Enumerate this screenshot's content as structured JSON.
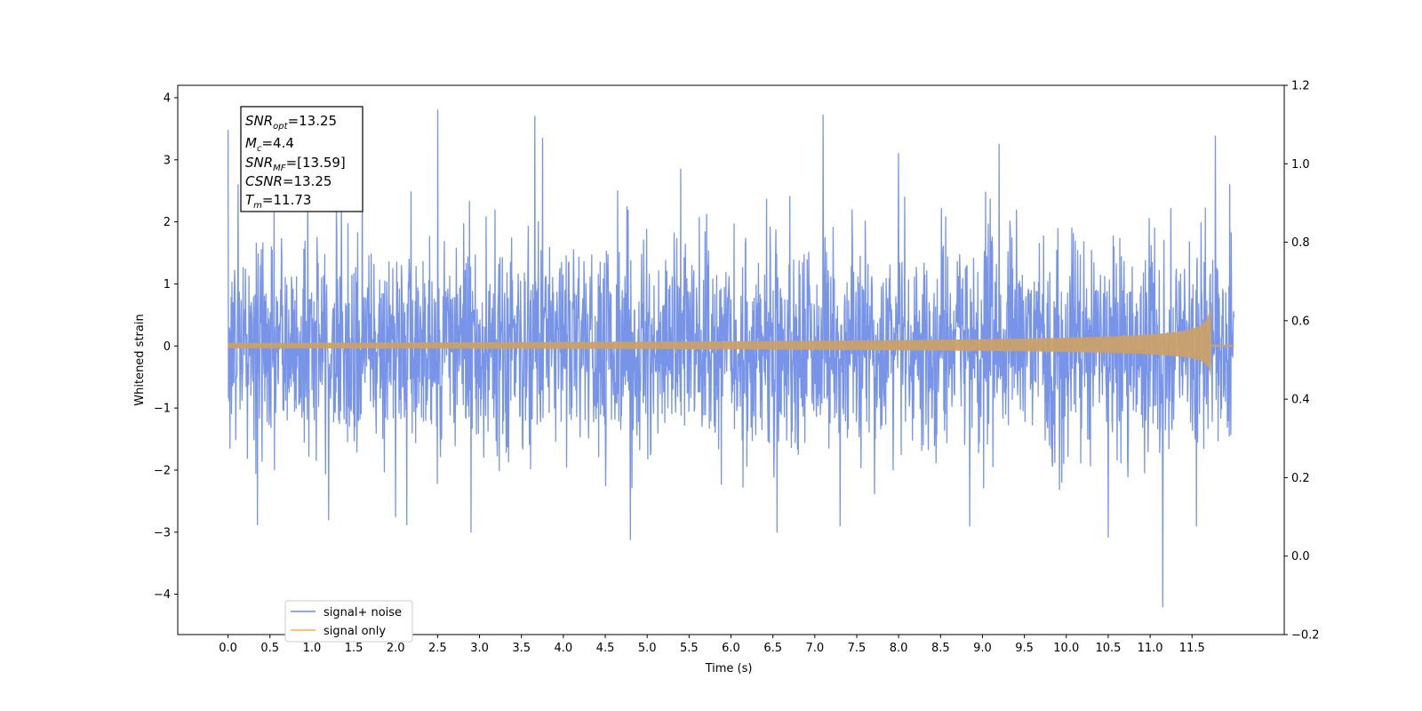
{
  "chart_data": {
    "type": "line",
    "title": "",
    "xlabel": "Time (s)",
    "ylabel": "Whitened strain",
    "xlim": [
      -0.6,
      12.6
    ],
    "ylim": [
      -4.65,
      4.2
    ],
    "ylim_right": [
      -0.2,
      1.2
    ],
    "x_ticks": [
      "0.0",
      "0.5",
      "1.0",
      "1.5",
      "2.0",
      "2.5",
      "3.0",
      "3.5",
      "4.0",
      "4.5",
      "5.0",
      "5.5",
      "6.0",
      "6.5",
      "7.0",
      "7.5",
      "8.0",
      "8.5",
      "9.0",
      "9.5",
      "10.0",
      "10.5",
      "11.0",
      "11.5"
    ],
    "y_ticks": [
      "4",
      "3",
      "2",
      "1",
      "0",
      "−1",
      "−2",
      "−3",
      "−4"
    ],
    "y_ticks_right": [
      "1.2",
      "1.0",
      "0.8",
      "0.6",
      "0.4",
      "0.2",
      "0.0",
      "−0.2"
    ],
    "grid": false,
    "legend_position": "lower-left",
    "series": [
      {
        "name": "signal+ noise",
        "color": "#6b8be6",
        "x_range": [
          0.0,
          12.0
        ],
        "noise_std": 0.85,
        "peaks": [
          {
            "x": 0.0,
            "y": 3.48
          },
          {
            "x": 0.12,
            "y": 2.6
          },
          {
            "x": 0.35,
            "y": -2.88
          },
          {
            "x": 0.95,
            "y": 3.05
          },
          {
            "x": 1.2,
            "y": -2.8
          },
          {
            "x": 1.6,
            "y": 3.1
          },
          {
            "x": 2.0,
            "y": -2.75
          },
          {
            "x": 2.13,
            "y": -2.88
          },
          {
            "x": 2.5,
            "y": 3.8
          },
          {
            "x": 2.9,
            "y": -3.0
          },
          {
            "x": 3.66,
            "y": 3.7
          },
          {
            "x": 3.75,
            "y": 3.35
          },
          {
            "x": 4.8,
            "y": -3.12
          },
          {
            "x": 5.4,
            "y": 2.85
          },
          {
            "x": 6.55,
            "y": -3.0
          },
          {
            "x": 7.1,
            "y": 3.72
          },
          {
            "x": 7.3,
            "y": -2.9
          },
          {
            "x": 8.0,
            "y": 3.1
          },
          {
            "x": 8.85,
            "y": -2.9
          },
          {
            "x": 9.2,
            "y": 3.25
          },
          {
            "x": 10.5,
            "y": -3.08
          },
          {
            "x": 11.15,
            "y": -4.2
          },
          {
            "x": 11.55,
            "y": -2.9
          },
          {
            "x": 11.78,
            "y": 3.38
          },
          {
            "x": 11.95,
            "y": 2.6
          }
        ]
      },
      {
        "name": "signal only",
        "color": "#f5b041",
        "x_range": [
          0.0,
          12.0
        ],
        "merger_time": 11.73,
        "envelope_start": 0.05,
        "envelope_end": 0.92
      }
    ]
  },
  "info_box": {
    "snr_opt": "=13.25",
    "mc": "=4.4",
    "snr_mf": "=[13.59]",
    "csnr": "=13.25",
    "tm": "=11.73"
  }
}
